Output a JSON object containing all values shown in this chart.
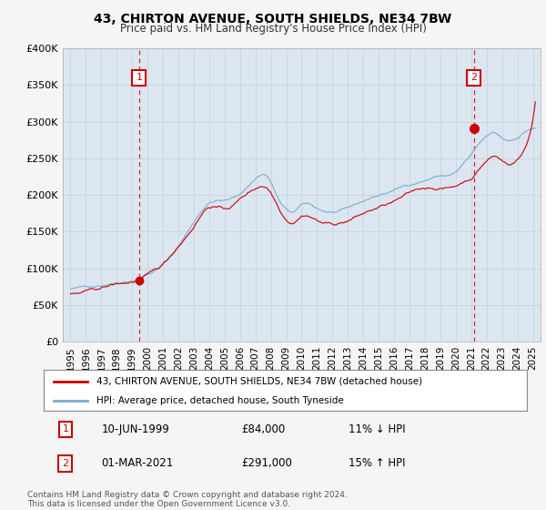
{
  "title": "43, CHIRTON AVENUE, SOUTH SHIELDS, NE34 7BW",
  "subtitle": "Price paid vs. HM Land Registry's House Price Index (HPI)",
  "legend_line1": "43, CHIRTON AVENUE, SOUTH SHIELDS, NE34 7BW (detached house)",
  "legend_line2": "HPI: Average price, detached house, South Tyneside",
  "annotation1_date": "10-JUN-1999",
  "annotation1_price": "£84,000",
  "annotation1_hpi": "11% ↓ HPI",
  "annotation1_year": 1999.45,
  "annotation1_value": 84000,
  "annotation2_date": "01-MAR-2021",
  "annotation2_price": "£291,000",
  "annotation2_hpi": "15% ↑ HPI",
  "annotation2_year": 2021.17,
  "annotation2_value": 291000,
  "ylim": [
    0,
    400000
  ],
  "yticks": [
    0,
    50000,
    100000,
    150000,
    200000,
    250000,
    300000,
    350000,
    400000
  ],
  "ytick_labels": [
    "£0",
    "£50K",
    "£100K",
    "£150K",
    "£200K",
    "£250K",
    "£300K",
    "£350K",
    "£400K"
  ],
  "xlim": [
    1994.5,
    2025.5
  ],
  "background_color": "#f5f5f5",
  "plot_bg_color": "#dce6f1",
  "grid_color": "#c8d4e0",
  "red_line_color": "#cc0000",
  "blue_line_color": "#7aadcc",
  "vline_color": "#cc0000",
  "marker_box_color": "#cc0000",
  "footer_text": "Contains HM Land Registry data © Crown copyright and database right 2024.\nThis data is licensed under the Open Government Licence v3.0."
}
